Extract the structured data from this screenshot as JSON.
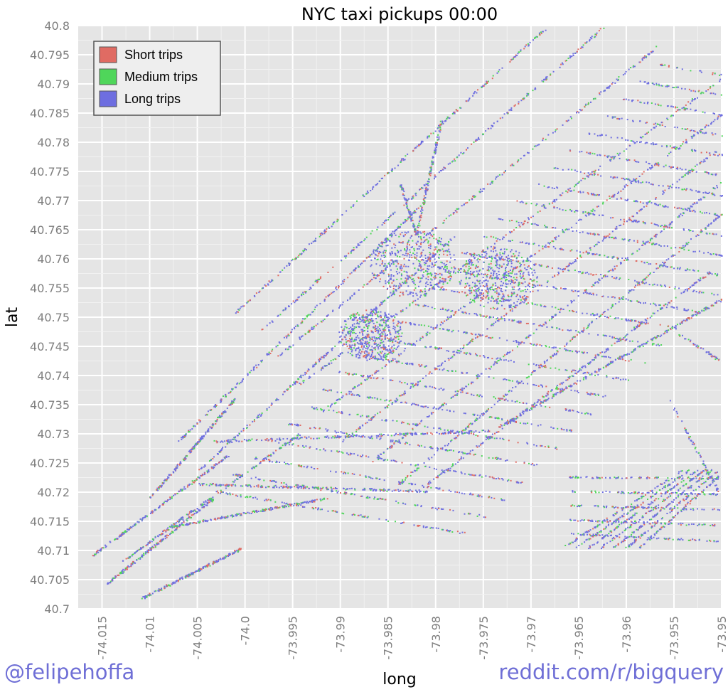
{
  "chart_data": {
    "type": "scatter",
    "title": "NYC taxi pickups 00:00",
    "xlabel": "long",
    "ylabel": "lat",
    "xlim": [
      -74.0175,
      -73.95
    ],
    "ylim": [
      40.7,
      40.8
    ],
    "x_ticks": [
      "-74.015",
      "-74.01",
      "-74.005",
      "-74.0",
      "-73.995",
      "-73.99",
      "-73.985",
      "-73.98",
      "-73.975",
      "-73.97",
      "-73.965",
      "-73.96",
      "-73.955",
      "-73.95"
    ],
    "y_ticks": [
      "40.8",
      "40.795",
      "40.79",
      "40.785",
      "40.78",
      "40.775",
      "40.77",
      "40.765",
      "40.76",
      "40.755",
      "40.75",
      "40.745",
      "40.74",
      "40.735",
      "40.73",
      "40.725",
      "40.72",
      "40.715",
      "40.71",
      "40.705",
      "40.7"
    ],
    "grid": true,
    "legend_position": "top-left",
    "series": [
      {
        "name": "Short trips",
        "color": "#e06b63"
      },
      {
        "name": "Medium trips",
        "color": "#4fd65a"
      },
      {
        "name": "Long trips",
        "color": "#6e6ee0"
      }
    ]
  },
  "credits": {
    "left": "@felipehoffa",
    "right": "reddit.com/r/bigquery"
  }
}
